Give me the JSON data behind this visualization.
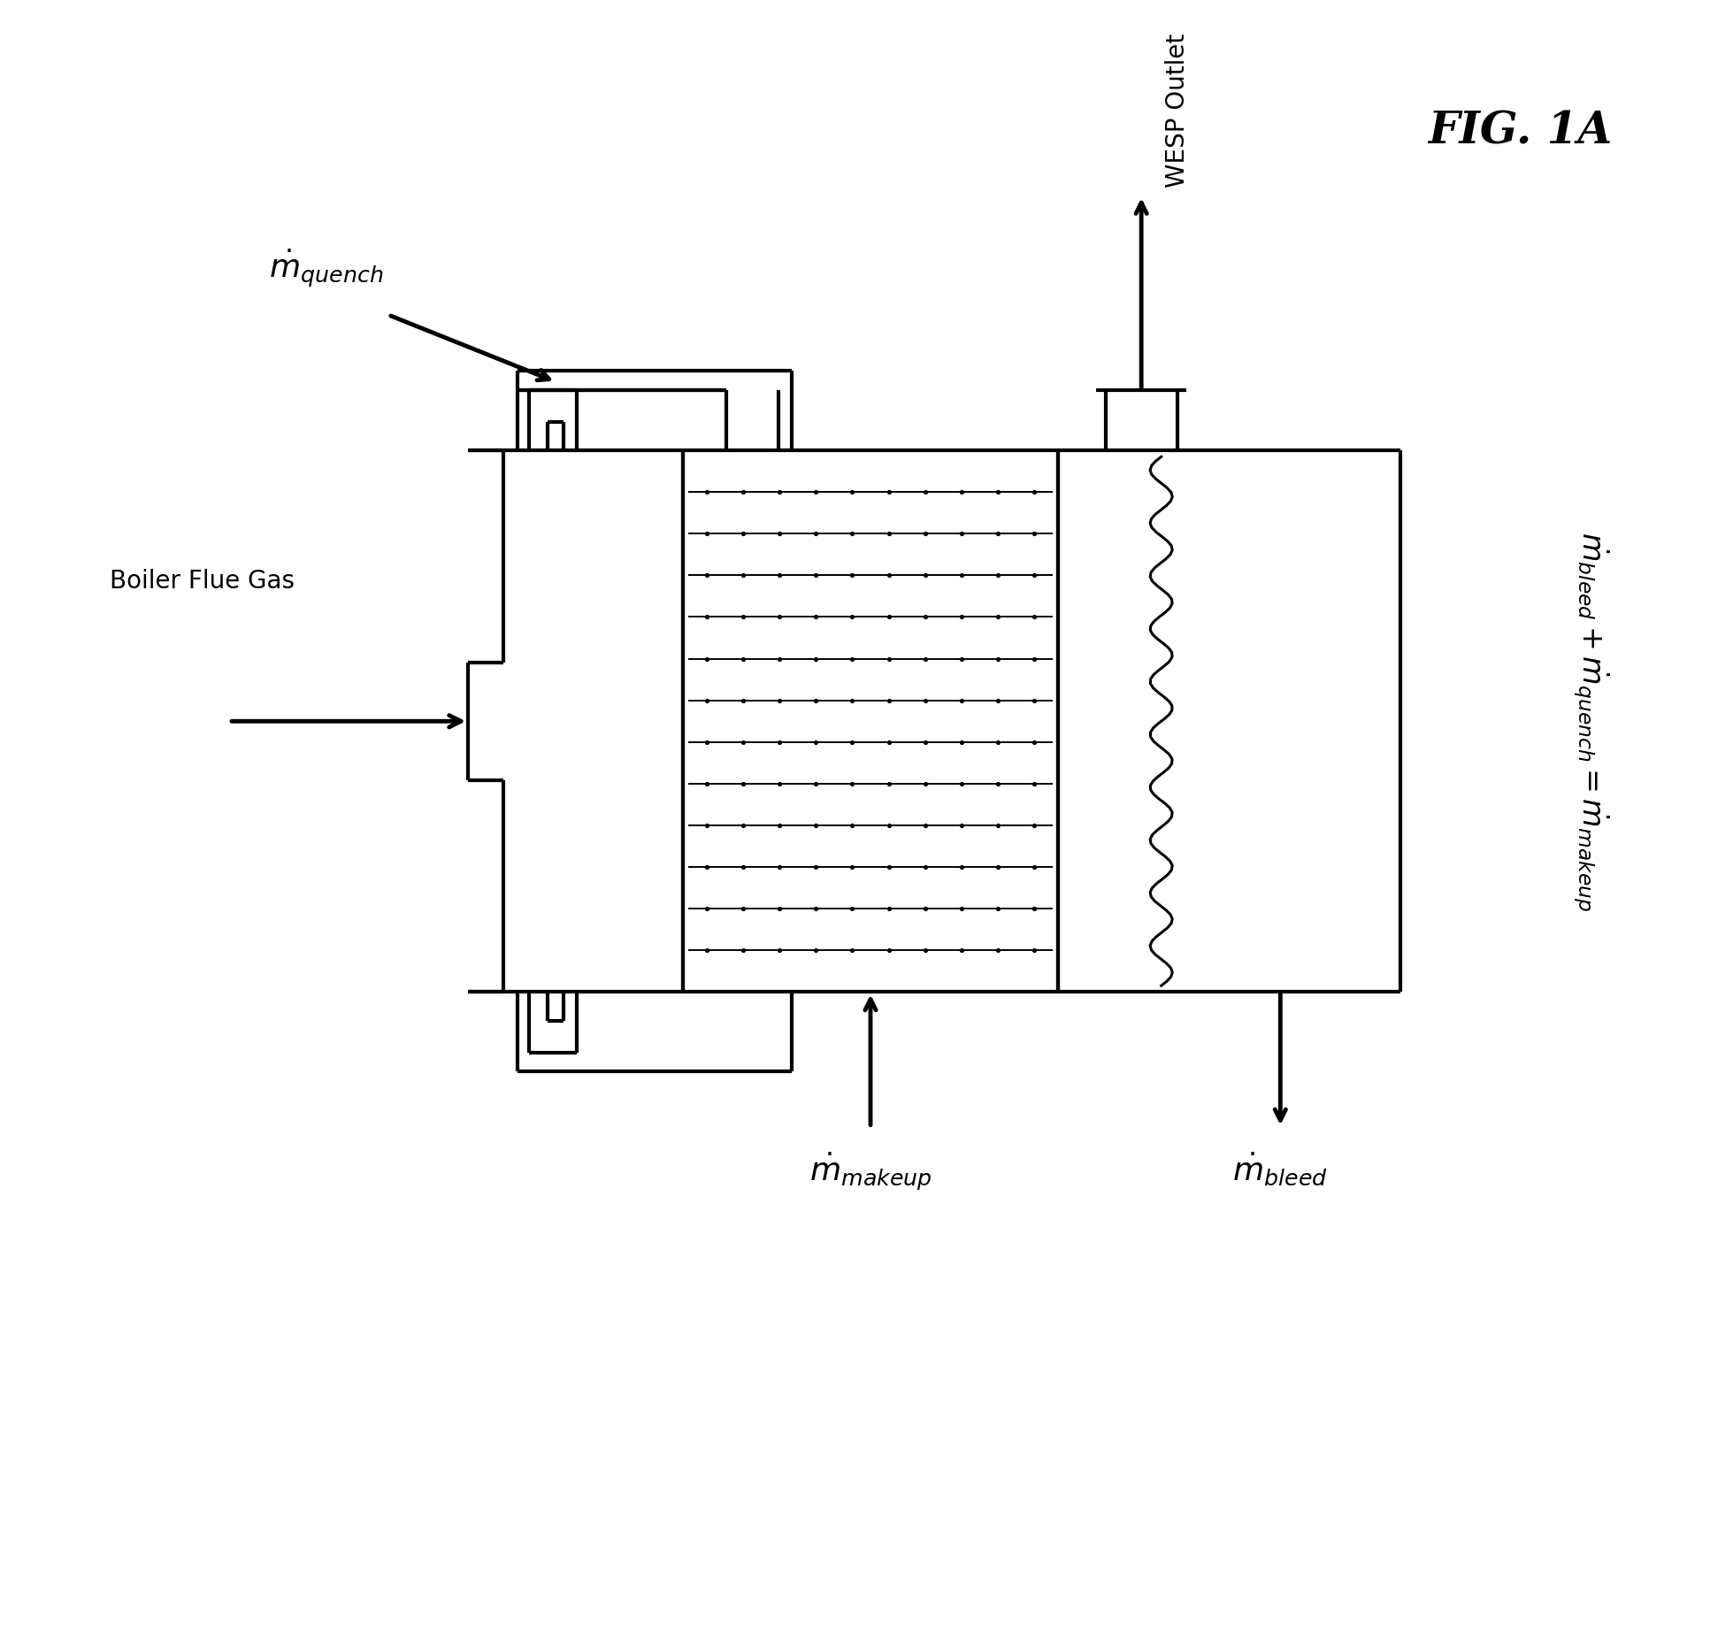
{
  "bg_color": "#ffffff",
  "line_color": "#000000",
  "lw_main": 3.0,
  "lw_thin": 1.4,
  "figsize": [
    19.59,
    18.55
  ],
  "dpi": 100,
  "xlim": [
    0,
    10
  ],
  "ylim": [
    0,
    10
  ],
  "n_fins": 12,
  "n_dots_per_fin": 10,
  "n_waves": 10,
  "labels": {
    "boiler_flue_gas": "Boiler Flue Gas",
    "m_quench": "$\\dot{m}_{quench}$",
    "wesp_outlet": "WESP Outlet",
    "m_makeup": "$\\dot{m}_{makeup}$",
    "m_bleed": "$\\dot{m}_{bleed}$",
    "equation": "$\\dot{m}_{bleed} + \\dot{m}_{quench} = \\dot{m}_{makeup}$",
    "fig_label": "FIG. 1A"
  }
}
